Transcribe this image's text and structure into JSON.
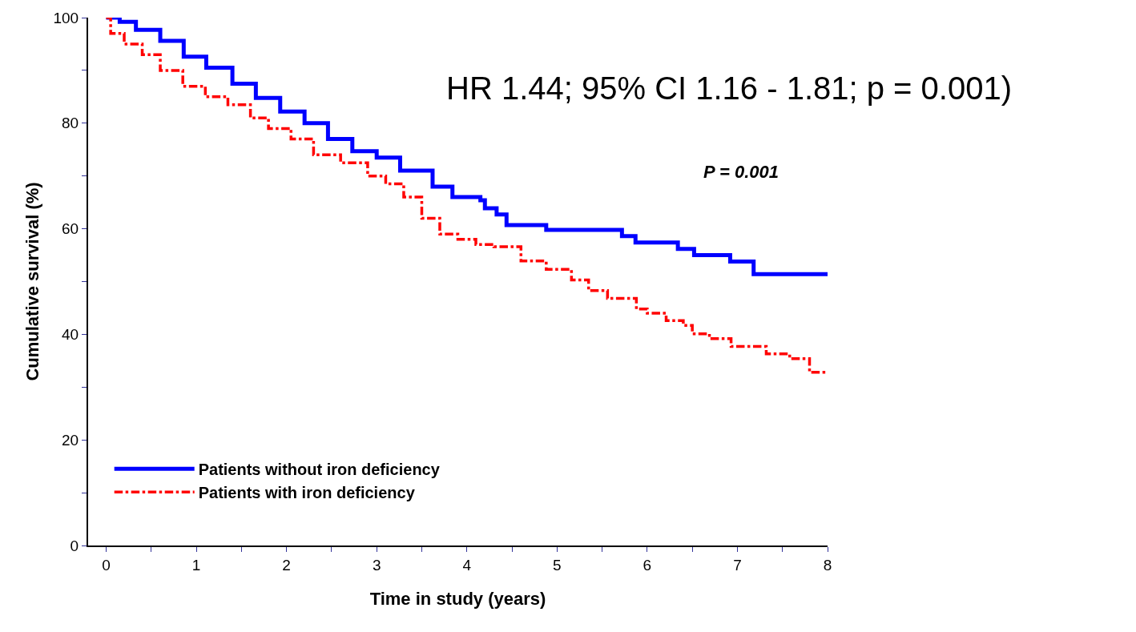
{
  "chart_data": {
    "type": "step",
    "xlabel": "Time in study (years)",
    "ylabel": "Cumulative survival (%)",
    "annotations": [
      "HR 1.44; 95% CI 1.16 - 1.81; p = 0.001)",
      "P = 0.001"
    ],
    "xlim": [
      -0.2,
      8
    ],
    "ylim": [
      0,
      100
    ],
    "xticks": [
      0,
      {
        "value": 0.5,
        "label": null
      },
      1,
      {
        "value": 1.5,
        "label": null
      },
      2,
      {
        "value": 2.5,
        "label": null
      },
      3,
      {
        "value": 3.5,
        "label": null
      },
      4,
      {
        "value": 4.5,
        "label": null
      },
      5,
      {
        "value": 5.5,
        "label": null
      },
      6,
      {
        "value": 6.5,
        "label": null
      },
      7,
      {
        "value": 7.5,
        "label": null
      },
      8
    ],
    "yticks": [
      0,
      {
        "value": 10,
        "label": null
      },
      20,
      {
        "value": 30,
        "label": null
      },
      40,
      {
        "value": 50,
        "label": null
      },
      60,
      {
        "value": 70,
        "label": null
      },
      80,
      {
        "value": 90,
        "label": null
      },
      100
    ],
    "legend": "bottom left",
    "marker": "none",
    "series": [
      {
        "name": "Patients without iron deficiency",
        "color": "#0000ff",
        "line_style": "solid",
        "x": [
          0,
          0.15,
          0.33,
          0.6,
          0.86,
          1.11,
          1.4,
          1.66,
          1.93,
          2.2,
          2.46,
          2.73,
          3.0,
          3.26,
          3.62,
          3.84,
          4.15,
          4.2,
          4.33,
          4.44,
          4.88,
          5.72,
          5.87,
          6.34,
          6.52,
          6.92,
          7.18,
          8
        ],
        "values": [
          100,
          99.2,
          97.7,
          95.6,
          92.6,
          90.5,
          87.5,
          84.8,
          82.2,
          80,
          77,
          74.7,
          73.5,
          71,
          68,
          66,
          65.4,
          63.9,
          62.7,
          60.7,
          59.8,
          58.6,
          57.4,
          56.2,
          55.0,
          53.8,
          51.4,
          51.4
        ]
      },
      {
        "name": "Patients with iron deficiency",
        "color": "#ff0000",
        "line_style": "dashdot",
        "x": [
          0,
          0.05,
          0.2,
          0.4,
          0.6,
          0.85,
          1.1,
          1.35,
          1.6,
          1.8,
          2.05,
          2.3,
          2.6,
          2.9,
          3.1,
          3.3,
          3.5,
          3.7,
          3.9,
          4.1,
          4.3,
          4.6,
          4.88,
          5.16,
          5.35,
          5.56,
          5.88,
          6.0,
          6.21,
          6.4,
          6.5,
          6.69,
          6.93,
          7.32,
          7.58,
          7.8,
          8
        ],
        "values": [
          100,
          97,
          95,
          93,
          90,
          87,
          85,
          83.5,
          81,
          79,
          77,
          74,
          72.5,
          70,
          68.5,
          66,
          62,
          59,
          58,
          57,
          56.6,
          53.9,
          52.3,
          50.3,
          48.3,
          46.8,
          44.8,
          44.0,
          42.6,
          41.7,
          40.1,
          39.2,
          37.7,
          36.3,
          35.4,
          32.8,
          32.8
        ]
      }
    ]
  }
}
